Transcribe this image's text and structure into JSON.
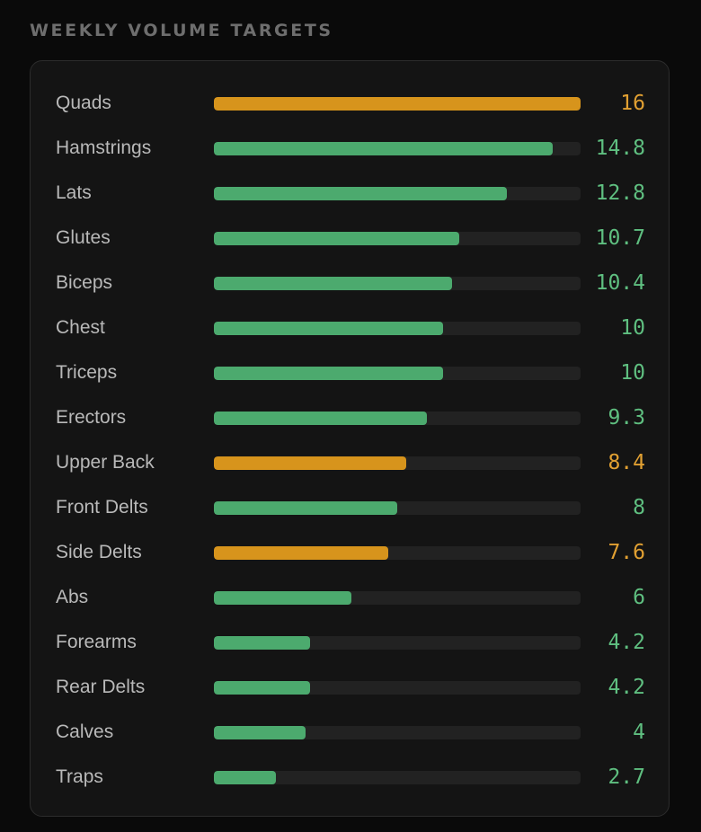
{
  "section_title": "WEEKLY VOLUME TARGETS",
  "colors": {
    "green": "#4caa6e",
    "amber": "#d7941c",
    "green_text": "#5fbf80",
    "amber_text": "#e1a032"
  },
  "chart_data": {
    "type": "bar",
    "orientation": "horizontal",
    "title": "WEEKLY VOLUME TARGETS",
    "xlim": [
      0,
      16
    ],
    "grid": false,
    "legend": "none",
    "categories": [
      "Quads",
      "Hamstrings",
      "Lats",
      "Glutes",
      "Biceps",
      "Chest",
      "Triceps",
      "Erectors",
      "Upper Back",
      "Front Delts",
      "Side Delts",
      "Abs",
      "Forearms",
      "Rear Delts",
      "Calves",
      "Traps"
    ],
    "values": [
      16,
      14.8,
      12.8,
      10.7,
      10.4,
      10,
      10,
      9.3,
      8.4,
      8,
      7.6,
      6,
      4.2,
      4.2,
      4,
      2.7
    ],
    "value_labels": [
      "16",
      "14.8",
      "12.8",
      "10.7",
      "10.4",
      "10",
      "10",
      "9.3",
      "8.4",
      "8",
      "7.6",
      "6",
      "4.2",
      "4.2",
      "4",
      "2.7"
    ],
    "bar_colors": [
      "amber",
      "green",
      "green",
      "green",
      "green",
      "green",
      "green",
      "green",
      "amber",
      "green",
      "amber",
      "green",
      "green",
      "green",
      "green",
      "green"
    ]
  }
}
